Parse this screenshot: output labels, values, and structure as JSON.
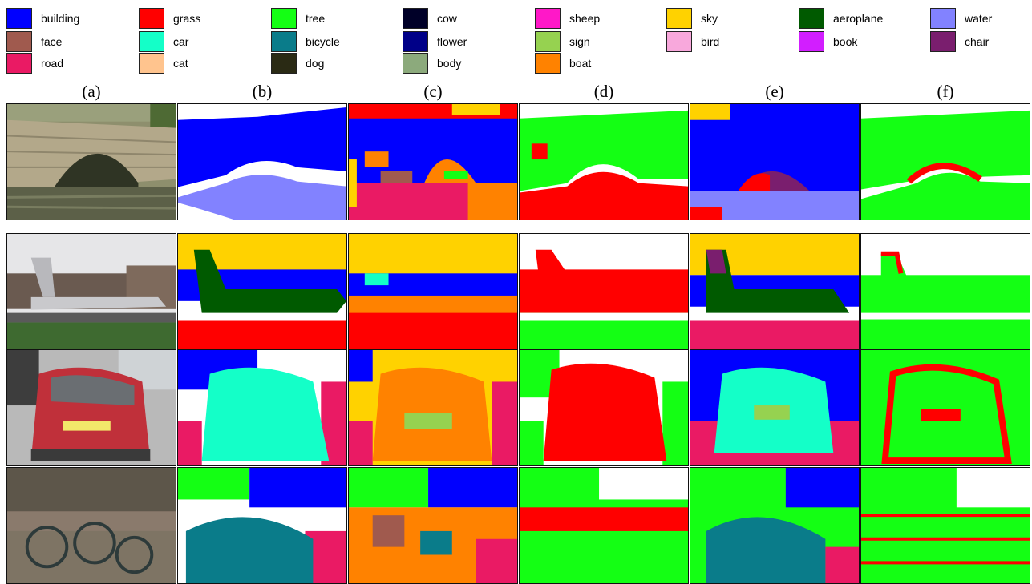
{
  "legend": {
    "items": [
      {
        "label": "building",
        "color": "#0000ff"
      },
      {
        "label": "face",
        "color": "#a05a4e"
      },
      {
        "label": "road",
        "color": "#ea1a64"
      },
      {
        "label": "grass",
        "color": "#ff0000"
      },
      {
        "label": "car",
        "color": "#14ffc8"
      },
      {
        "label": "cat",
        "color": "#ffc48e"
      },
      {
        "label": "tree",
        "color": "#14ff14"
      },
      {
        "label": "bicycle",
        "color": "#0a7c8a"
      },
      {
        "label": "dog",
        "color": "#2a2a14"
      },
      {
        "label": "cow",
        "color": "#000028"
      },
      {
        "label": "flower",
        "color": "#000088"
      },
      {
        "label": "body",
        "color": "#8caa7c"
      },
      {
        "label": "sheep",
        "color": "#ff18c8"
      },
      {
        "label": "sign",
        "color": "#96d250"
      },
      {
        "label": "boat",
        "color": "#ff8200"
      },
      {
        "label": "sky",
        "color": "#ffd200"
      },
      {
        "label": "bird",
        "color": "#f8a8dc"
      },
      {
        "label": "aeroplane",
        "color": "#005a00"
      },
      {
        "label": "book",
        "color": "#d21eff"
      },
      {
        "label": "water",
        "color": "#8282ff"
      },
      {
        "label": "chair",
        "color": "#7a1e6e"
      }
    ]
  },
  "columns": [
    "(a)",
    "(b)",
    "(c)",
    "(d)",
    "(e)",
    "(f)"
  ],
  "rows": [
    {
      "scene": "stone-bridge-over-water"
    },
    {
      "scene": "aeroplane-on-runway"
    },
    {
      "scene": "red-car-rear-view"
    },
    {
      "scene": "parked-bicycles"
    }
  ]
}
